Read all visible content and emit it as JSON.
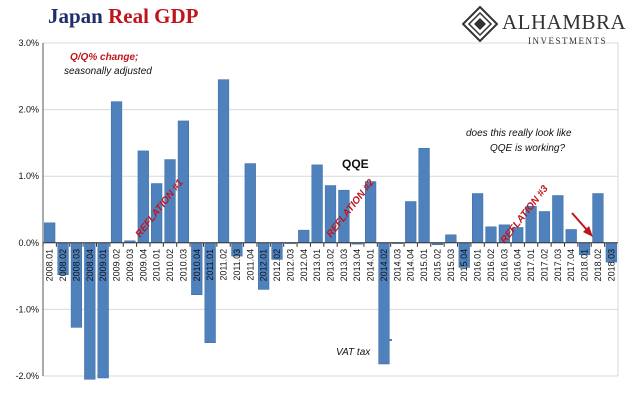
{
  "title": {
    "part1": "Japan",
    "part2": "Real GDP"
  },
  "logo": {
    "name": "ALHAMBRA",
    "subtitle": "INVESTMENTS",
    "icon": "alhambra-diamond-logo-icon"
  },
  "colors": {
    "bar": "#4f81bd",
    "title_dark": "#1f2d6b",
    "accent_red": "#c0141c",
    "grid": "#d9d9d9"
  },
  "annotations": {
    "subtitle_line1": "Q/Q% change;",
    "subtitle_line2": "seasonally adjusted",
    "question_line1": "does this really look like",
    "question_line2": "QQE is working?",
    "qqe": "QQE",
    "vat": "VAT tax",
    "reflation1": "REFLATION #1",
    "reflation2": "REFLATION #2",
    "reflation3": "REFLATION #3"
  },
  "chart_data": {
    "type": "bar",
    "categories": [
      "2008.01",
      "2008.02",
      "2008.03",
      "2008.04",
      "2009.01",
      "2009.02",
      "2009.03",
      "2009.04",
      "2010.01",
      "2010.02",
      "2010.03",
      "2010.04",
      "2011.01",
      "2011.02",
      "2011.03",
      "2011.04",
      "2012.01",
      "2012.02",
      "2012.03",
      "2012.04",
      "2013.01",
      "2013.02",
      "2013.03",
      "2013.04",
      "2014.01",
      "2014.02",
      "2014.03",
      "2014.04",
      "2015.01",
      "2015.02",
      "2015.03",
      "2015.04",
      "2016.01",
      "2016.02",
      "2016.03",
      "2016.04",
      "2017.01",
      "2017.02",
      "2017.03",
      "2017.04",
      "2018.01",
      "2018.02",
      "2018.03"
    ],
    "values": [
      0.3,
      -0.48,
      -1.27,
      -2.05,
      -2.03,
      2.12,
      0.03,
      1.38,
      0.89,
      1.25,
      1.83,
      -0.78,
      -1.5,
      2.45,
      -0.2,
      1.19,
      -0.7,
      -0.25,
      0.0,
      0.19,
      1.17,
      0.86,
      0.79,
      -0.02,
      0.92,
      -1.82,
      0.0,
      0.62,
      1.42,
      -0.03,
      0.12,
      -0.37,
      0.74,
      0.24,
      0.27,
      0.23,
      0.55,
      0.47,
      0.71,
      0.2,
      -0.18,
      0.74,
      -0.29
    ],
    "ylim": [
      -2.0,
      3.0
    ],
    "yticks": [
      -2.0,
      -1.0,
      0.0,
      1.0,
      2.0,
      3.0
    ],
    "ytick_labels": [
      "-2.0%",
      "-1.0%",
      "0.0%",
      "1.0%",
      "2.0%",
      "3.0%"
    ],
    "grid": true
  }
}
